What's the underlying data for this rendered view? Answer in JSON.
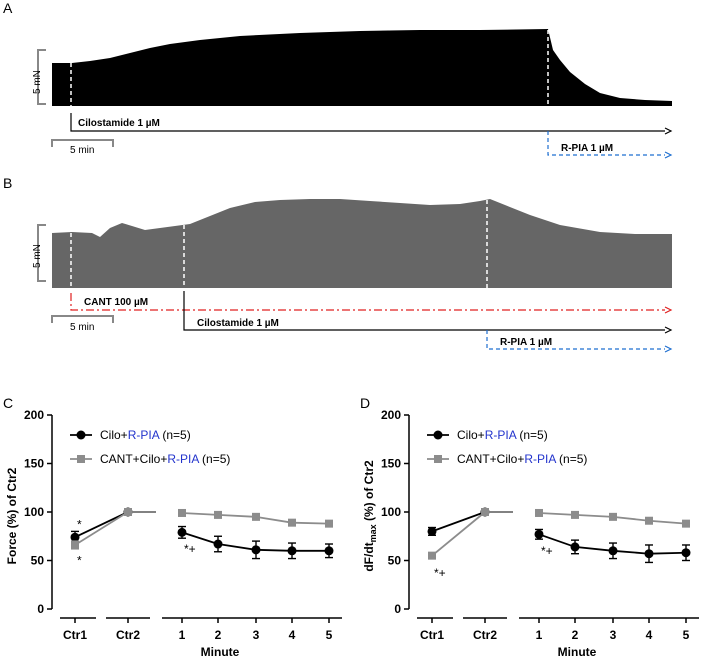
{
  "panels": {
    "A": {
      "letter": "A",
      "scale_force": "5 mN",
      "scale_time": "5 min",
      "drugs": [
        {
          "label": "Cilostamide 1 µM",
          "color": "#000000",
          "style": "solid"
        },
        {
          "label": "R-PIA  1 µM",
          "color": "#1f6fd0",
          "style": "dashed"
        }
      ]
    },
    "B": {
      "letter": "B",
      "scale_force": "5 mN",
      "scale_time": "5 min",
      "drugs": [
        {
          "label": "CANT 100 µM",
          "color": "#e02020",
          "style": "dashdot"
        },
        {
          "label": "Cilostamide 1 µM",
          "color": "#000000",
          "style": "solid"
        },
        {
          "label": "R-PIA  1 µM",
          "color": "#1f6fd0",
          "style": "dashed"
        }
      ]
    }
  },
  "colors": {
    "trace_A": "#000000",
    "trace_B": "#666666",
    "series_black": "#000000",
    "series_gray": "#8c8c8c",
    "legend_blue": "#2233cc"
  },
  "chart_data": [
    {
      "panel": "C",
      "type": "line",
      "ylabel": "Force (%) of Ctr2",
      "xlabel": "Minute",
      "ylim": [
        0,
        200
      ],
      "yticks": [
        0,
        50,
        100,
        150,
        200
      ],
      "categories": [
        "Ctr1",
        "Ctr2",
        "1",
        "2",
        "3",
        "4",
        "5"
      ],
      "series": [
        {
          "name": "Cilo+",
          "name_highlight": "R-PIA",
          "name_suffix": " (n=5)",
          "color": "#000000",
          "marker": "circle",
          "values": [
            74,
            100,
            79,
            67,
            61,
            60,
            60
          ],
          "errors": [
            6,
            0,
            6,
            8,
            9,
            8,
            7
          ]
        },
        {
          "name": "CANT+Cilo+",
          "name_highlight": "R-PIA",
          "name_suffix": " (n=5)",
          "color": "#8c8c8c",
          "marker": "square",
          "values": [
            66,
            100,
            99,
            97,
            95,
            89,
            88
          ],
          "errors": [
            4,
            0,
            2,
            2,
            2,
            2,
            2
          ]
        }
      ],
      "annotations": [
        {
          "text": "*",
          "category": "Ctr1",
          "y": 87,
          "color": "#000000"
        },
        {
          "text": "*",
          "category": "Ctr1",
          "y": 50,
          "color": "#8c8c8c"
        },
        {
          "text": "*+",
          "category": "1",
          "y": 62,
          "color": "#000000"
        }
      ]
    },
    {
      "panel": "D",
      "type": "line",
      "ylabel": "dF/dt",
      "ylabel_sub": "max",
      "ylabel_suffix": " (%) of Ctr2",
      "xlabel": "Minute",
      "ylim": [
        0,
        200
      ],
      "yticks": [
        0,
        50,
        100,
        150,
        200
      ],
      "categories": [
        "Ctr1",
        "Ctr2",
        "1",
        "2",
        "3",
        "4",
        "5"
      ],
      "series": [
        {
          "name": "Cilo+",
          "name_highlight": "R-PIA",
          "name_suffix": " (n=5)",
          "color": "#000000",
          "marker": "circle",
          "values": [
            80,
            100,
            77,
            64,
            60,
            57,
            58
          ],
          "errors": [
            4,
            0,
            5,
            7,
            8,
            9,
            8
          ]
        },
        {
          "name": "CANT+Cilo+",
          "name_highlight": "R-PIA",
          "name_suffix": " (n=5)",
          "color": "#8c8c8c",
          "marker": "square",
          "values": [
            55,
            100,
            99,
            97,
            95,
            91,
            88
          ],
          "errors": [
            3,
            0,
            2,
            2,
            2,
            2,
            2
          ]
        }
      ],
      "annotations": [
        {
          "text": "*+",
          "category": "Ctr1",
          "y": 37,
          "color": "#000000"
        },
        {
          "text": "*+",
          "category": "1",
          "y": 60,
          "color": "#000000"
        }
      ]
    }
  ]
}
